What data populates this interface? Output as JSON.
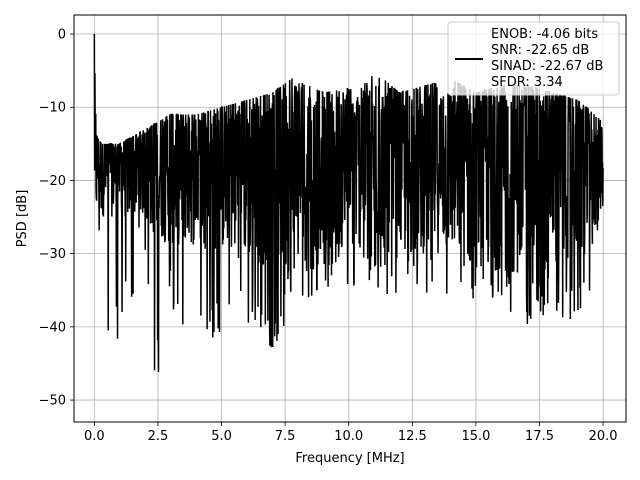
{
  "chart_data": {
    "type": "line",
    "xlabel": "Frequency [MHz]",
    "ylabel": "PSD [dB]",
    "xlim": [
      -0.8,
      20.9
    ],
    "ylim": [
      -53,
      2.6
    ],
    "xticks": [
      0.0,
      2.5,
      5.0,
      7.5,
      10.0,
      12.5,
      15.0,
      17.5,
      20.0
    ],
    "xtick_labels": [
      "0.0",
      "2.5",
      "5.0",
      "7.5",
      "10.0",
      "12.5",
      "15.0",
      "17.5",
      "20.0"
    ],
    "yticks": [
      0,
      -10,
      -20,
      -30,
      -40,
      -50
    ],
    "ytick_labels": [
      "0",
      "−10",
      "−20",
      "−30",
      "−40",
      "−50"
    ],
    "grid": true,
    "legend_position": "top-right",
    "legend_entries": [
      "ENOB: -4.06 bits",
      "SNR: -22.65 dB",
      "SINAD: -22.67 dB",
      "SFDR: 3.34"
    ],
    "series": [
      {
        "color": "#000000",
        "x_start": 0.0,
        "x_end": 20.0,
        "upper_envelope": [
          [
            0.0,
            0.0
          ],
          [
            0.05,
            -8
          ],
          [
            0.1,
            -14
          ],
          [
            0.3,
            -15
          ],
          [
            1,
            -15
          ],
          [
            2,
            -13
          ],
          [
            3,
            -11
          ],
          [
            4,
            -11
          ],
          [
            5,
            -10
          ],
          [
            6,
            -9
          ],
          [
            7,
            -8
          ],
          [
            7.8,
            -6
          ],
          [
            9,
            -8
          ],
          [
            10.5,
            -7
          ],
          [
            11,
            -5
          ],
          [
            12,
            -8
          ],
          [
            13,
            -7
          ],
          [
            14,
            -6
          ],
          [
            15,
            -8
          ],
          [
            16,
            -7
          ],
          [
            17,
            -7
          ],
          [
            18,
            -8
          ],
          [
            19,
            -9
          ],
          [
            20,
            -12
          ]
        ],
        "lower_envelope": [
          [
            0.0,
            -18
          ],
          [
            0.3,
            -35
          ],
          [
            0.4,
            -44.5
          ],
          [
            1,
            -42
          ],
          [
            2,
            -30
          ],
          [
            2.3,
            -50.5
          ],
          [
            3,
            -37
          ],
          [
            3.5,
            -44
          ],
          [
            5,
            -41
          ],
          [
            6,
            -40
          ],
          [
            7,
            -43
          ],
          [
            8,
            -38
          ],
          [
            9,
            -35
          ],
          [
            10,
            -36
          ],
          [
            11,
            -35
          ],
          [
            12,
            -37
          ],
          [
            13,
            -36
          ],
          [
            14,
            -36
          ],
          [
            15,
            -40
          ],
          [
            16,
            -38
          ],
          [
            17,
            -40
          ],
          [
            18,
            -39
          ],
          [
            19,
            -40
          ],
          [
            20,
            -30
          ]
        ],
        "median_db": -18
      }
    ]
  }
}
